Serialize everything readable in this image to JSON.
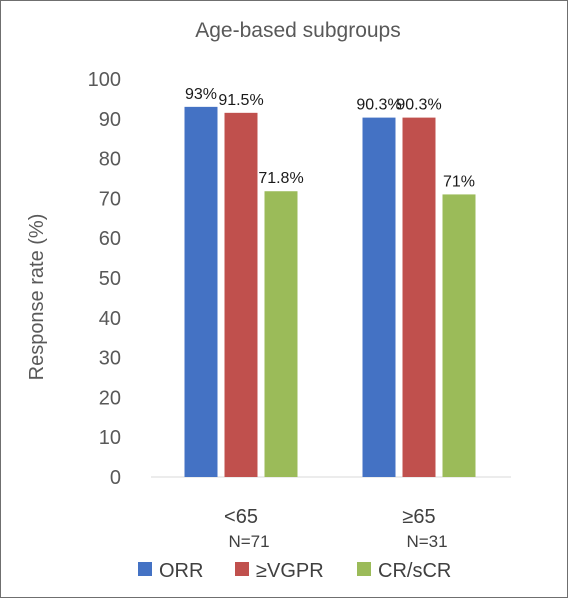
{
  "chart_data": {
    "type": "bar",
    "title": "Age-based subgroups",
    "ylabel": "Response rate (%)",
    "ylim": [
      0,
      100
    ],
    "yticks": [
      0,
      10,
      20,
      30,
      40,
      50,
      60,
      70,
      80,
      90,
      100
    ],
    "grid": false,
    "legend_position": "bottom",
    "categories": [
      {
        "label": "<65",
        "sublabel": "N=71"
      },
      {
        "label": "≥65",
        "sublabel": "N=31"
      }
    ],
    "series": [
      {
        "name": "ORR",
        "color": "#4472c4",
        "values": [
          93,
          90.3
        ],
        "labels": [
          "93%",
          "90.3%"
        ]
      },
      {
        "name": "≥VGPR",
        "color": "#c0504d",
        "values": [
          91.5,
          90.3
        ],
        "labels": [
          "91.5%",
          "90.3%"
        ]
      },
      {
        "name": "CR/sCR",
        "color": "#9bbb59",
        "values": [
          71.8,
          71
        ],
        "labels": [
          "71.8%",
          "71%"
        ]
      }
    ]
  }
}
